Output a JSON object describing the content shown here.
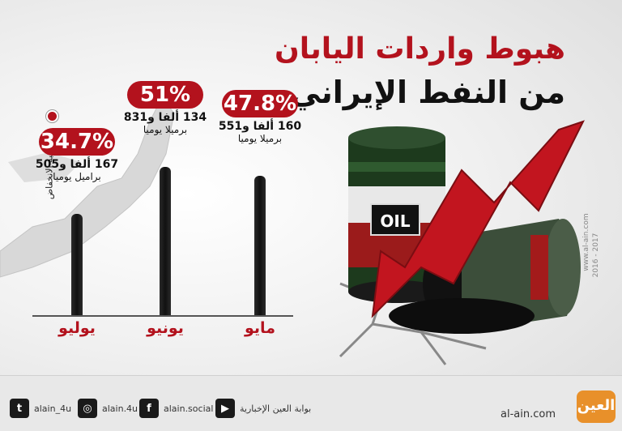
{
  "title": {
    "line1": "هبوط واردات اليابان",
    "line2": "من النفط الإيراني"
  },
  "legend_label": "نسبة الانخفاض",
  "chart_data": {
    "type": "bar",
    "categories": [
      "يوليو",
      "يونيو",
      "مايو"
    ],
    "percent_labels": [
      "34.7%",
      "51%",
      "47.8%"
    ],
    "percent_values": [
      34.7,
      51,
      47.8
    ],
    "volume_lines": [
      {
        "line1": "167 ألفا و505",
        "line2": "براميل يوميا"
      },
      {
        "line1": "134 ألفا و831",
        "line2": "برميلا يوميا"
      },
      {
        "line1": "160 ألفا و551",
        "line2": "برميلا يوميا"
      }
    ],
    "volumes_barrels_per_day": [
      167505,
      134831,
      160551
    ],
    "bar_color": "#1a1a1a",
    "accent_color": "#b3121d"
  },
  "barrel_label": "OIL",
  "watermark": {
    "site": "www.al-ain.com",
    "years": "2016 - 2017"
  },
  "footer": {
    "twitter": "alain_4u",
    "instagram": "alain.4u",
    "facebook": "alain.social",
    "youtube": "بوابة العين الإخبارية",
    "site": "al-ain.com",
    "logo": "العين"
  },
  "colors": {
    "red": "#b3121d",
    "dark": "#111111",
    "orange": "#e8902a"
  }
}
